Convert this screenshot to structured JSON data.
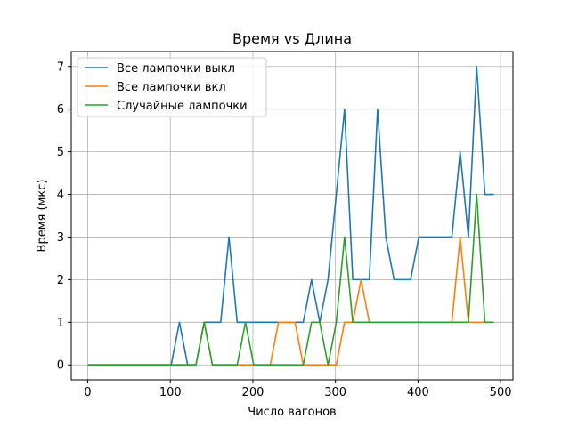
{
  "chart_data": {
    "type": "line",
    "title": "Время vs Длина",
    "xlabel": "Число вагонов",
    "ylabel": "Время (мкс)",
    "xlim": [
      -20,
      515
    ],
    "ylim": [
      -0.35,
      7.35
    ],
    "xticks": [
      0,
      100,
      200,
      300,
      400,
      500
    ],
    "yticks": [
      0,
      1,
      2,
      3,
      4,
      5,
      6,
      7
    ],
    "grid": true,
    "legend": "top-left",
    "x": [
      1,
      11,
      21,
      31,
      41,
      51,
      61,
      71,
      81,
      91,
      101,
      111,
      121,
      131,
      141,
      151,
      161,
      171,
      181,
      191,
      201,
      211,
      221,
      231,
      241,
      251,
      261,
      271,
      281,
      291,
      301,
      311,
      321,
      331,
      341,
      351,
      361,
      371,
      381,
      391,
      401,
      411,
      421,
      431,
      441,
      451,
      461,
      471,
      481,
      491
    ],
    "series": [
      {
        "name": "Все лампочки выкл",
        "color": "#1f77b4",
        "values": [
          0,
          0,
          0,
          0,
          0,
          0,
          0,
          0,
          0,
          0,
          0,
          1,
          0,
          0,
          1,
          1,
          1,
          3,
          1,
          1,
          1,
          1,
          1,
          1,
          1,
          1,
          1,
          2,
          1,
          2,
          4,
          6,
          2,
          2,
          2,
          6,
          3,
          2,
          2,
          2,
          3,
          3,
          3,
          3,
          3,
          5,
          3,
          7,
          4,
          4
        ]
      },
      {
        "name": "Все лампочки вкл",
        "color": "#ff7f0e",
        "values": [
          0,
          0,
          0,
          0,
          0,
          0,
          0,
          0,
          0,
          0,
          0,
          0,
          0,
          0,
          1,
          0,
          0,
          0,
          0,
          0,
          0,
          0,
          0,
          1,
          1,
          1,
          0,
          0,
          0,
          0,
          0,
          1,
          1,
          2,
          1,
          1,
          1,
          1,
          1,
          1,
          1,
          1,
          1,
          1,
          1,
          3,
          1,
          1,
          1,
          1
        ]
      },
      {
        "name": "Случайные лампочки",
        "color": "#2ca02c",
        "values": [
          0,
          0,
          0,
          0,
          0,
          0,
          0,
          0,
          0,
          0,
          0,
          0,
          0,
          0,
          1,
          0,
          0,
          0,
          0,
          1,
          0,
          0,
          0,
          0,
          0,
          0,
          0,
          1,
          1,
          0,
          1,
          3,
          1,
          1,
          1,
          1,
          1,
          1,
          1,
          1,
          1,
          1,
          1,
          1,
          1,
          1,
          1,
          4,
          1,
          1
        ]
      }
    ]
  }
}
